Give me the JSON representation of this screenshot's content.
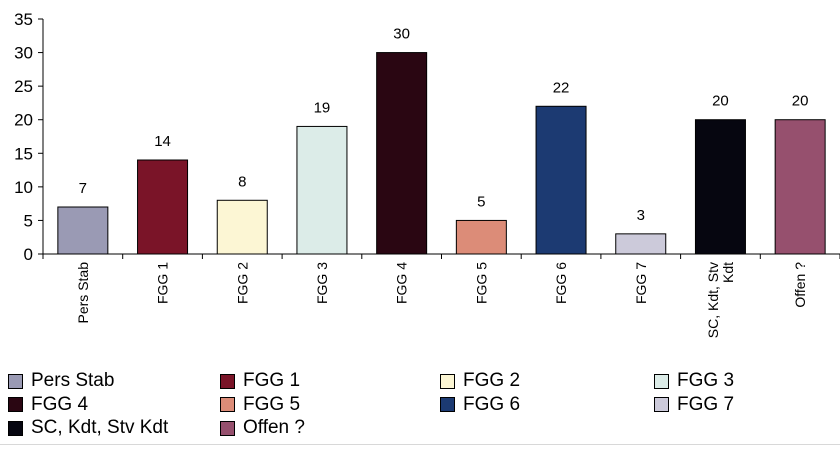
{
  "chart_data": {
    "type": "bar",
    "title": "",
    "xlabel": "",
    "ylabel": "",
    "ylim": [
      0,
      35
    ],
    "yticks": [
      0,
      5,
      10,
      15,
      20,
      25,
      30,
      35
    ],
    "grid": false,
    "legend_position": "bottom",
    "categories": [
      "Pers Stab",
      "FGG 1",
      "FGG 2",
      "FGG 3",
      "FGG 4",
      "FGG 5",
      "FGG 6",
      "FGG 7",
      "SC, Kdt, Stv Kdt",
      "Offen ?"
    ],
    "tick_labels": [
      [
        "Pers Stab"
      ],
      [
        "FGG 1"
      ],
      [
        "FGG 2"
      ],
      [
        "FGG 3"
      ],
      [
        "FGG 4"
      ],
      [
        "FGG 5"
      ],
      [
        "FGG 6"
      ],
      [
        "FGG 7"
      ],
      [
        "SC, Kdt, Stv",
        "Kdt"
      ],
      [
        "Offen ?"
      ]
    ],
    "values": [
      7,
      14,
      8,
      19,
      30,
      5,
      22,
      3,
      20,
      20
    ],
    "colors": [
      "#9a9ab4",
      "#7a1428",
      "#fcf6d4",
      "#dcece8",
      "#2a0612",
      "#dc8c78",
      "#1c3a72",
      "#cccada",
      "#060610",
      "#96506e"
    ],
    "legend": [
      "Pers Stab",
      "FGG 1",
      "FGG 2",
      "FGG 3",
      "FGG 4",
      "FGG 5",
      "FGG 6",
      "FGG 7",
      "SC, Kdt, Stv Kdt",
      "Offen ?"
    ]
  }
}
